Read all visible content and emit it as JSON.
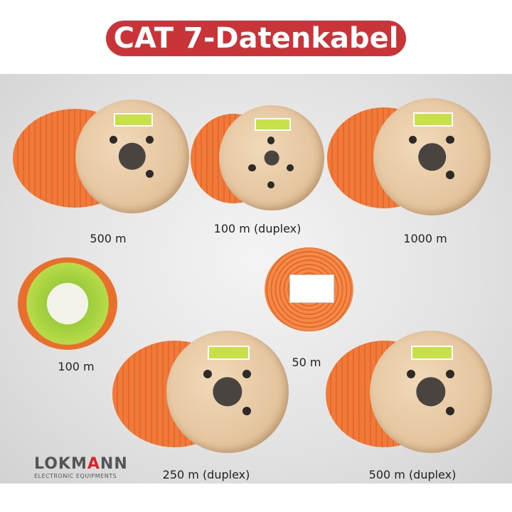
{
  "title": "CAT 7-Datenkabel",
  "products": [
    {
      "caption": "500 m"
    },
    {
      "caption": "100 m (duplex)"
    },
    {
      "caption": "1000 m"
    },
    {
      "caption": "100 m"
    },
    {
      "caption": "50 m"
    },
    {
      "caption": "250 m (duplex)"
    },
    {
      "caption": "500 m (duplex)"
    }
  ],
  "logo": {
    "name": "LOKMANN",
    "tagline": "ELECTRONIC EQUIPMENTS"
  },
  "colors": {
    "banner": "#c83437",
    "cable": "#f07a3a",
    "label": "#c8e04a"
  }
}
